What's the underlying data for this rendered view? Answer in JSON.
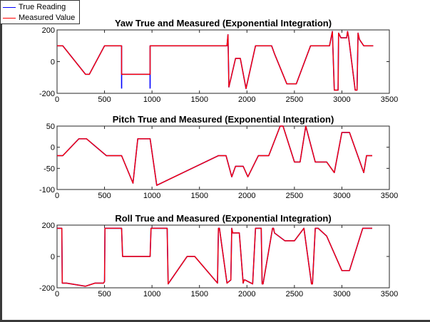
{
  "legend": {
    "true_label": "True Reading",
    "measured_label": "Measured Value",
    "true_color": "#0000ff",
    "measured_color": "#ff0000"
  },
  "chart_data": [
    {
      "type": "line",
      "title": "Yaw True and Measured (Exponential Integration)",
      "xlim": [
        0,
        3500
      ],
      "ylim": [
        -200,
        200
      ],
      "xticks": [
        0,
        500,
        1000,
        1500,
        2000,
        2500,
        3000,
        3500
      ],
      "yticks": [
        -200,
        0,
        200
      ],
      "series": [
        {
          "name": "True Reading",
          "color": "#0000ff"
        },
        {
          "name": "Measured Value",
          "color": "#ff0000"
        }
      ],
      "x": [
        0,
        60,
        300,
        340,
        500,
        680,
        680,
        980,
        980,
        990,
        1790,
        1800,
        1810,
        1880,
        1930,
        1990,
        2090,
        2260,
        2290,
        2420,
        2520,
        2670,
        2780,
        2870,
        2900,
        2920,
        2960,
        2965,
        2990,
        3050,
        3060,
        3070,
        3140,
        3155,
        3160,
        3170,
        3185,
        3230,
        3330
      ],
      "true_y": [
        100,
        100,
        -80,
        -80,
        100,
        100,
        -80,
        -80,
        100,
        100,
        100,
        170,
        -160,
        20,
        20,
        -170,
        100,
        100,
        50,
        -140,
        -140,
        100,
        100,
        100,
        190,
        -180,
        -180,
        180,
        150,
        150,
        190,
        160,
        -180,
        -180,
        -180,
        180,
        140,
        100,
        100
      ],
      "measured_y": [
        100,
        100,
        -80,
        -80,
        100,
        100,
        -80,
        -80,
        100,
        100,
        100,
        170,
        -160,
        20,
        20,
        -170,
        100,
        100,
        50,
        -140,
        -140,
        100,
        100,
        100,
        190,
        -180,
        -180,
        180,
        150,
        150,
        190,
        160,
        -180,
        -180,
        -180,
        180,
        140,
        100,
        100
      ],
      "true_drop_x": [
        680,
        980
      ],
      "true_drop_y": [
        -170,
        -170
      ]
    },
    {
      "type": "line",
      "title": "Pitch True and Measured (Exponential Integration)",
      "xlim": [
        0,
        3500
      ],
      "ylim": [
        -100,
        50
      ],
      "xticks": [
        0,
        500,
        1000,
        1500,
        2000,
        2500,
        3000,
        3500
      ],
      "yticks": [
        -100,
        -50,
        0,
        50
      ],
      "series": [
        {
          "name": "True Reading",
          "color": "#0000ff"
        },
        {
          "name": "Measured Value",
          "color": "#ff0000"
        }
      ],
      "x": [
        0,
        60,
        230,
        310,
        520,
        680,
        800,
        850,
        980,
        1050,
        1700,
        1780,
        1840,
        1880,
        1960,
        2010,
        2120,
        2230,
        2350,
        2380,
        2500,
        2560,
        2620,
        2720,
        2840,
        2920,
        3000,
        3080,
        3230,
        3260,
        3320
      ],
      "true_y": [
        -20,
        -20,
        20,
        20,
        -20,
        -20,
        -85,
        20,
        20,
        -90,
        -20,
        -20,
        -70,
        -45,
        -45,
        -70,
        -20,
        -20,
        50,
        50,
        -35,
        -35,
        50,
        -35,
        -35,
        -60,
        35,
        35,
        -60,
        -20,
        -20
      ],
      "measured_y": [
        -20,
        -20,
        20,
        20,
        -20,
        -20,
        -85,
        20,
        20,
        -90,
        -20,
        -20,
        -70,
        -45,
        -45,
        -70,
        -20,
        -20,
        50,
        50,
        -35,
        -35,
        50,
        -35,
        -35,
        -60,
        35,
        35,
        -60,
        -20,
        -20
      ]
    },
    {
      "type": "line",
      "title": "Roll True and Measured (Exponential Integration)",
      "xlim": [
        0,
        3500
      ],
      "ylim": [
        -200,
        200
      ],
      "xticks": [
        0,
        500,
        1000,
        1500,
        2000,
        2500,
        3000,
        3500
      ],
      "yticks": [
        -200,
        0,
        200
      ],
      "series": [
        {
          "name": "True Reading",
          "color": "#0000ff"
        },
        {
          "name": "Measured Value",
          "color": "#ff0000"
        }
      ],
      "x": [
        0,
        50,
        55,
        100,
        300,
        400,
        490,
        500,
        505,
        680,
        690,
        700,
        980,
        990,
        1160,
        1170,
        1370,
        1450,
        1690,
        1700,
        1710,
        1790,
        1830,
        1840,
        1850,
        1920,
        1960,
        1970,
        1980,
        2060,
        2090,
        2150,
        2160,
        2170,
        2270,
        2280,
        2290,
        2400,
        2500,
        2600,
        2680,
        2690,
        2720,
        2730,
        2750,
        2840,
        3000,
        3080,
        3220,
        3320
      ],
      "true_y": [
        180,
        180,
        -170,
        -170,
        -190,
        -170,
        -170,
        -160,
        180,
        180,
        0,
        0,
        0,
        180,
        180,
        -175,
        0,
        0,
        -170,
        180,
        180,
        -170,
        -150,
        180,
        150,
        150,
        -170,
        -150,
        -150,
        -175,
        180,
        180,
        -175,
        -175,
        180,
        180,
        150,
        100,
        100,
        180,
        -175,
        -175,
        180,
        180,
        180,
        130,
        -90,
        -90,
        180,
        180
      ],
      "measured_y": [
        180,
        180,
        -170,
        -170,
        -190,
        -170,
        -170,
        -160,
        180,
        180,
        0,
        0,
        0,
        180,
        180,
        -175,
        0,
        0,
        -170,
        180,
        180,
        -170,
        -150,
        180,
        150,
        150,
        -170,
        -150,
        -150,
        -175,
        180,
        180,
        -175,
        -175,
        180,
        180,
        150,
        100,
        100,
        180,
        -175,
        -175,
        180,
        180,
        180,
        130,
        -90,
        -90,
        180,
        180
      ]
    }
  ]
}
